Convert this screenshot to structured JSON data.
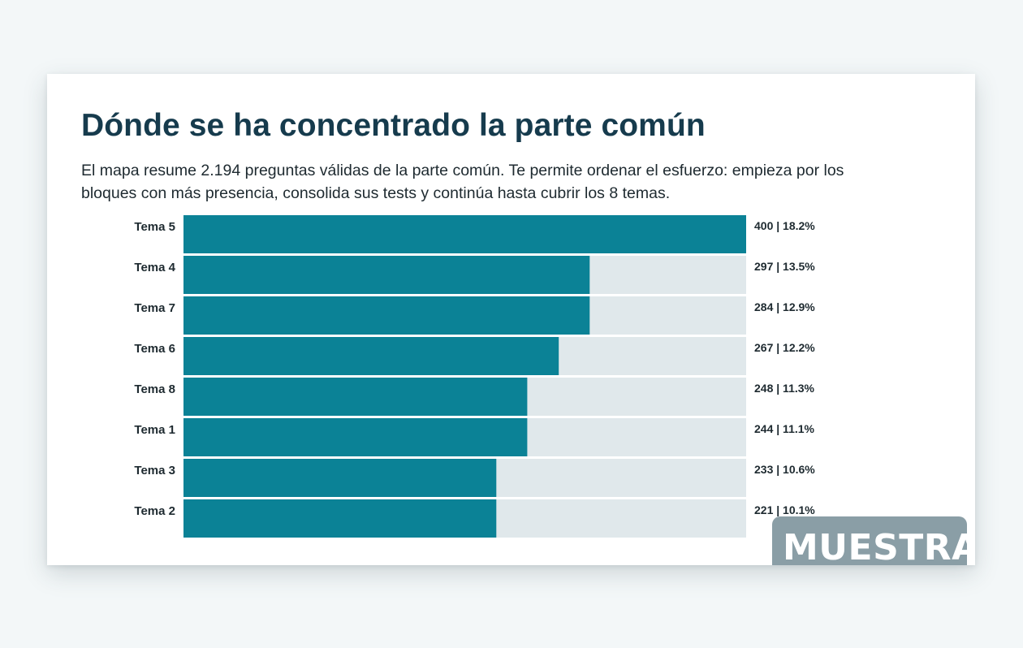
{
  "title": "Dónde se ha concentrado la parte común",
  "subtitle": "El mapa resume 2.194 preguntas válidas de la parte común. Te permite ordenar el esfuerzo: empieza por los bloques con más presencia, consolida sus tests y continúa hasta cubrir los 8 temas.",
  "watermark": "MUESTRA",
  "colors": {
    "bar": "#0b8296",
    "track": "#e0e8eb",
    "title": "#163b4d",
    "watermark_bg": "#8a9ea6"
  },
  "chart_data": {
    "type": "bar",
    "orientation": "horizontal",
    "categories": [
      "Tema 5",
      "Tema 4",
      "Tema 7",
      "Tema 6",
      "Tema 8",
      "Tema 1",
      "Tema 3",
      "Tema 2"
    ],
    "values": [
      400,
      297,
      284,
      267,
      248,
      244,
      233,
      221
    ],
    "value_labels": [
      "400 | 18.2%",
      "297 | 13.5%",
      "284 | 12.9%",
      "267 | 12.2%",
      "248 | 11.3%",
      "244 | 11.1%",
      "233 | 10.6%",
      "221 | 10.1%"
    ],
    "bar_fractions": [
      1.0,
      0.722,
      0.722,
      0.667,
      0.611,
      0.611,
      0.556,
      0.556
    ],
    "xlim": [
      0,
      400
    ],
    "grid": false,
    "legend": "none"
  }
}
